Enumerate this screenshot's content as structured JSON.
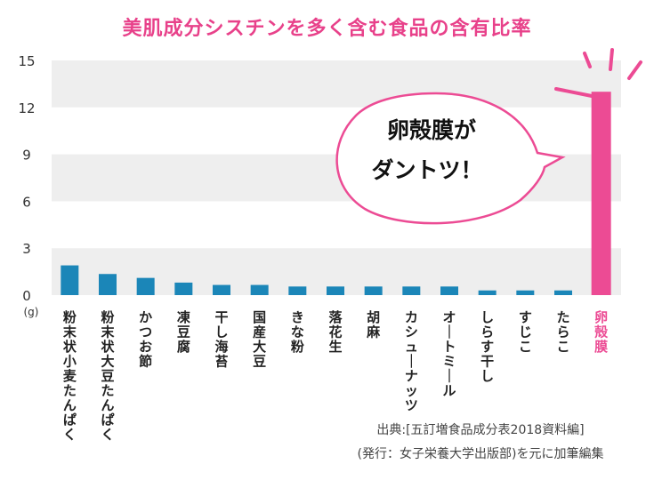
{
  "chart_data": {
    "type": "bar",
    "title": "美肌成分シスチンを多く含む食品の含有比率",
    "ylabel": "",
    "unit_label": "(g)",
    "ylim": [
      0,
      15
    ],
    "yticks": [
      "0",
      "3",
      "6",
      "9",
      "12",
      "15"
    ],
    "grid": "horizontal bands",
    "categories": [
      "粉末状小麦たんぱく",
      "粉末状大豆たんぱく",
      "かつお節",
      "凍豆腐",
      "干し海苔",
      "国産大豆",
      "きな粉",
      "落花生",
      "胡麻",
      "カシューナッツ",
      "オートミール",
      "しらす干し",
      "すじこ",
      "たらこ",
      "卵殻膜"
    ],
    "values": [
      1.9,
      1.35,
      1.1,
      0.8,
      0.65,
      0.65,
      0.55,
      0.55,
      0.55,
      0.55,
      0.55,
      0.3,
      0.3,
      0.3,
      13.0
    ],
    "highlight_index": 14,
    "colors": {
      "normal": "#1b86b8",
      "highlight": "#ec4b94",
      "highlight_label": "#ec4b94",
      "band": "#eeeeee",
      "title": "#e8418a"
    }
  },
  "callout": {
    "line1": "卵殻膜が",
    "line2": "ダントツ！"
  },
  "source": {
    "line1": "出典:[五訂増食品成分表2018資料編]",
    "line2": "(発行：女子栄養大学出版部)を元に加筆編集"
  }
}
